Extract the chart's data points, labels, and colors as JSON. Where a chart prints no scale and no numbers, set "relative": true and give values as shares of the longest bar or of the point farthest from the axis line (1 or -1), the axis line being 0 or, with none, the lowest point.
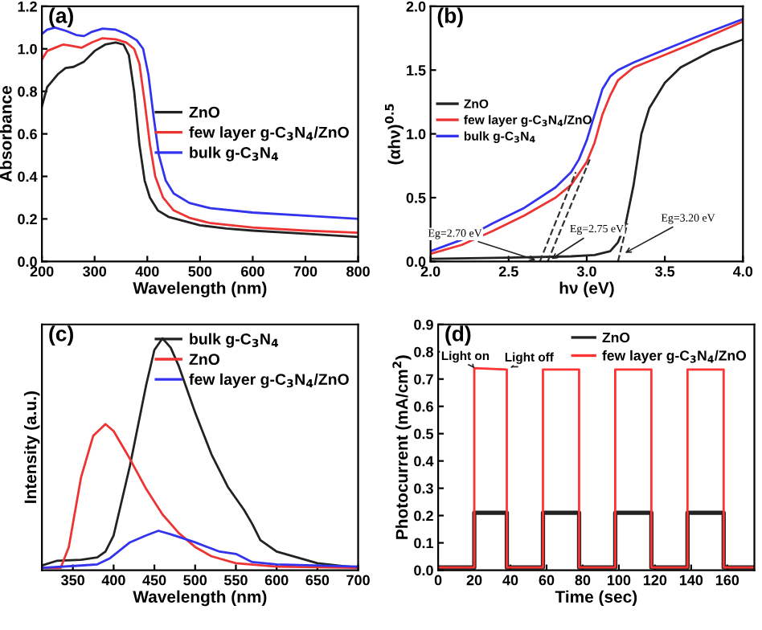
{
  "chart_data": [
    {
      "type": "line",
      "title": "(a)",
      "xlabel": "Wavelength (nm)",
      "ylabel": "Absorbance",
      "xlim": [
        200,
        800
      ],
      "xticks": [
        200,
        300,
        400,
        500,
        600,
        700,
        800
      ],
      "ylim": [
        0,
        1.2
      ],
      "yticks": [
        {
          "value": 0,
          "label": "0.0"
        },
        0.2,
        0.4,
        0.6,
        0.8,
        {
          "value": 1,
          "label": "1.0"
        },
        1.2
      ],
      "legend": "center right",
      "grid": false,
      "series": [
        {
          "name": "ZnO",
          "color": "#222222",
          "x": [
            200,
            210,
            230,
            245,
            260,
            280,
            300,
            320,
            340,
            355,
            365,
            375,
            385,
            395,
            405,
            420,
            440,
            470,
            500,
            550,
            600,
            700,
            800
          ],
          "values": [
            0.73,
            0.82,
            0.88,
            0.91,
            0.915,
            0.94,
            0.99,
            1.02,
            1.03,
            1.02,
            0.97,
            0.8,
            0.55,
            0.38,
            0.3,
            0.24,
            0.21,
            0.19,
            0.17,
            0.155,
            0.145,
            0.13,
            0.115
          ]
        },
        {
          "name": "few layer g-C$_{3}$N$_{4}$/ZnO",
          "color": "#ee3333",
          "x": [
            200,
            210,
            230,
            240,
            255,
            275,
            295,
            315,
            340,
            360,
            375,
            385,
            395,
            405,
            415,
            430,
            450,
            480,
            520,
            600,
            700,
            800
          ],
          "values": [
            0.95,
            0.99,
            1.01,
            1.02,
            1.015,
            1.005,
            1.03,
            1.05,
            1.045,
            1.03,
            1.0,
            0.93,
            0.75,
            0.55,
            0.4,
            0.3,
            0.24,
            0.205,
            0.18,
            0.16,
            0.145,
            0.135
          ]
        },
        {
          "name": "bulk g-C$_{3}$N$_{4}$",
          "color": "#3333ee",
          "x": [
            200,
            210,
            225,
            245,
            265,
            280,
            295,
            315,
            340,
            360,
            380,
            392,
            402,
            412,
            422,
            435,
            450,
            480,
            520,
            600,
            700,
            800
          ],
          "values": [
            1.07,
            1.09,
            1.1,
            1.085,
            1.065,
            1.06,
            1.08,
            1.095,
            1.09,
            1.07,
            1.04,
            1.0,
            0.88,
            0.68,
            0.5,
            0.38,
            0.32,
            0.275,
            0.25,
            0.23,
            0.215,
            0.2
          ]
        }
      ]
    },
    {
      "type": "line",
      "title": "(b)",
      "xlabel": "hν (eV)",
      "ylabel": "(αhν)$^{0.5}$",
      "xlim": [
        2,
        4
      ],
      "xticks": [
        {
          "value": 2,
          "label": "2.0"
        },
        2.5,
        {
          "value": 3,
          "label": "3.0"
        },
        3.5,
        {
          "value": 4,
          "label": "4.0"
        }
      ],
      "ylim": [
        0,
        2
      ],
      "yticks": [
        {
          "value": 0,
          "label": "0.0"
        },
        0.5,
        {
          "value": 1,
          "label": "1.0"
        },
        1.5,
        {
          "value": 2,
          "label": "2.0"
        }
      ],
      "legend": "center left",
      "grid": false,
      "annotations": [
        {
          "text": "Eg=2.70 eV",
          "x": 2.7,
          "y": 0
        },
        {
          "text": "Eg=2.75 eV",
          "x": 2.75,
          "y": 0
        },
        {
          "text": "Eg=3.20 eV",
          "x": 3.22,
          "y": 0.05
        }
      ],
      "series": [
        {
          "name": "ZnO",
          "color": "#222222",
          "x": [
            2.0,
            2.5,
            2.9,
            3.05,
            3.15,
            3.2,
            3.25,
            3.3,
            3.35,
            3.4,
            3.5,
            3.6,
            3.8,
            4.0
          ],
          "values": [
            0.02,
            0.03,
            0.04,
            0.05,
            0.08,
            0.15,
            0.3,
            0.6,
            1.0,
            1.2,
            1.4,
            1.52,
            1.65,
            1.74
          ]
        },
        {
          "name": "few layer g-C$_{3}$N$_{4}$/ZnO",
          "color": "#ee3333",
          "x": [
            2.0,
            2.2,
            2.4,
            2.6,
            2.8,
            2.9,
            3.0,
            3.05,
            3.1,
            3.15,
            3.2,
            3.3,
            3.5,
            3.7,
            4.0
          ],
          "values": [
            0.06,
            0.13,
            0.24,
            0.36,
            0.5,
            0.6,
            0.78,
            0.93,
            1.15,
            1.3,
            1.42,
            1.52,
            1.62,
            1.72,
            1.88
          ]
        },
        {
          "name": "bulk g-C$_{3}$N$_{4}$",
          "color": "#3333ee",
          "x": [
            2.0,
            2.2,
            2.4,
            2.6,
            2.8,
            2.9,
            2.95,
            3.0,
            3.05,
            3.1,
            3.15,
            3.2,
            3.3,
            3.5,
            3.7,
            4.0
          ],
          "values": [
            0.08,
            0.17,
            0.3,
            0.42,
            0.58,
            0.7,
            0.8,
            0.95,
            1.15,
            1.35,
            1.45,
            1.5,
            1.56,
            1.66,
            1.76,
            1.9
          ]
        },
        {
          "color": "#333333",
          "line_style": "dashed",
          "x": [
            2.7,
            2.93
          ],
          "values": [
            0,
            0.7
          ]
        },
        {
          "color": "#333333",
          "line_style": "dashed",
          "x": [
            2.75,
            3.02
          ],
          "values": [
            0,
            0.8
          ]
        },
        {
          "color": "#333333",
          "line_style": "dashed",
          "x": [
            3.2,
            3.26
          ],
          "values": [
            0,
            0.3
          ]
        }
      ]
    },
    {
      "type": "line",
      "title": "(c)",
      "xlabel": "Wavelength (nm)",
      "ylabel": "Intensity (a.u.)",
      "relative": true,
      "xlim": [
        312,
        700
      ],
      "xticks": [
        350,
        400,
        450,
        500,
        550,
        600,
        650,
        700
      ],
      "legend": "top right",
      "grid": false,
      "series": [
        {
          "name": "bulk g-C$_{3}$N$_{4}$",
          "color": "#222222",
          "x": [
            312,
            330,
            360,
            380,
            390,
            400,
            420,
            440,
            450,
            460,
            470,
            480,
            500,
            520,
            540,
            560,
            570,
            580,
            600,
            650,
            700
          ],
          "values": [
            0.02,
            0.04,
            0.045,
            0.055,
            0.08,
            0.15,
            0.45,
            0.8,
            0.95,
            1.0,
            0.96,
            0.88,
            0.68,
            0.5,
            0.36,
            0.26,
            0.2,
            0.13,
            0.08,
            0.03,
            0.01
          ]
        },
        {
          "name": "ZnO",
          "color": "#ee3333",
          "x": [
            312,
            335,
            345,
            360,
            375,
            390,
            400,
            420,
            440,
            460,
            480,
            500,
            520,
            550,
            600,
            700
          ],
          "values": [
            0.01,
            0.01,
            0.1,
            0.4,
            0.58,
            0.63,
            0.6,
            0.48,
            0.35,
            0.24,
            0.16,
            0.1,
            0.06,
            0.03,
            0.015,
            0.01
          ]
        },
        {
          "name": "few layer g-C$_{3}$N$_{4}$/ZnO",
          "color": "#3333ee",
          "x": [
            312,
            360,
            380,
            395,
            420,
            440,
            455,
            470,
            500,
            530,
            550,
            570,
            600,
            700
          ],
          "values": [
            0.01,
            0.02,
            0.025,
            0.05,
            0.12,
            0.15,
            0.17,
            0.155,
            0.12,
            0.08,
            0.07,
            0.035,
            0.025,
            0.015
          ]
        }
      ]
    },
    {
      "type": "line",
      "title": "(d)",
      "xlabel": "Time (sec)",
      "ylabel": "Photocurrent (mA/cm$^{2}$)",
      "xlim": [
        0,
        175
      ],
      "xticks": [
        0,
        20,
        40,
        60,
        80,
        100,
        120,
        140,
        160
      ],
      "ylim": [
        0,
        0.9
      ],
      "yticks": [
        {
          "value": 0,
          "label": "0.0"
        },
        0.1,
        0.2,
        0.3,
        0.4,
        0.5,
        0.6,
        0.7,
        0.8,
        0.9
      ],
      "legend": "top right",
      "grid": false,
      "annotations": [
        {
          "text": "Light on",
          "x": 20,
          "y": 0.74
        },
        {
          "text": "Light off",
          "x": 38,
          "y": 0.735
        }
      ],
      "series": [
        {
          "name": "ZnO",
          "color": "#222222",
          "x": [
            0,
            20,
            20,
            38,
            38,
            58,
            58,
            78,
            78,
            98,
            98,
            118,
            118,
            138,
            138,
            158,
            158,
            175
          ],
          "values": [
            0.01,
            0.01,
            0.21,
            0.21,
            0.01,
            0.01,
            0.21,
            0.21,
            0.01,
            0.01,
            0.21,
            0.21,
            0.01,
            0.01,
            0.21,
            0.21,
            0.01,
            0.01
          ]
        },
        {
          "name": "few layer g-C$_{3}$N$_{4}$/ZnO",
          "color": "#ff3333",
          "x": [
            0,
            20,
            20,
            38,
            38,
            58,
            58,
            78,
            78,
            98,
            98,
            118,
            118,
            138,
            138,
            158,
            158,
            175
          ],
          "values": [
            0.01,
            0.01,
            0.74,
            0.735,
            0.01,
            0.01,
            0.735,
            0.735,
            0.01,
            0.01,
            0.735,
            0.735,
            0.01,
            0.01,
            0.735,
            0.735,
            0.01,
            0.01
          ]
        }
      ]
    }
  ]
}
